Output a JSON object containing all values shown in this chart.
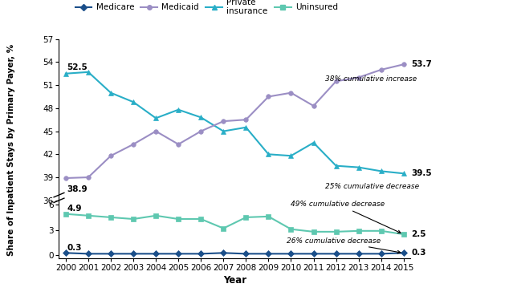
{
  "years": [
    2000,
    2001,
    2002,
    2003,
    2004,
    2005,
    2006,
    2007,
    2008,
    2009,
    2010,
    2011,
    2012,
    2013,
    2014,
    2015
  ],
  "medicare": [
    0.3,
    0.2,
    0.2,
    0.2,
    0.2,
    0.2,
    0.2,
    0.3,
    0.2,
    0.2,
    0.2,
    0.2,
    0.2,
    0.2,
    0.2,
    0.3
  ],
  "medicaid": [
    38.9,
    39.0,
    41.8,
    43.3,
    45.0,
    43.3,
    45.0,
    46.3,
    46.5,
    49.5,
    50.0,
    48.3,
    51.5,
    52.0,
    53.0,
    53.7
  ],
  "private": [
    52.5,
    52.7,
    50.0,
    48.8,
    46.7,
    47.8,
    46.8,
    45.0,
    45.5,
    42.0,
    41.8,
    43.5,
    40.5,
    40.3,
    39.8,
    39.5
  ],
  "uninsured": [
    4.9,
    4.7,
    4.5,
    4.3,
    4.7,
    4.3,
    4.3,
    3.2,
    4.5,
    4.6,
    3.1,
    2.8,
    2.8,
    2.9,
    2.9,
    2.5
  ],
  "medicare_color": "#1b4f8a",
  "medicaid_color": "#9b8ec4",
  "private_color": "#29aec7",
  "uninsured_color": "#5ec8b0",
  "ylabel": "Share of Inpatient Stays by Primary Payer, %",
  "xlabel": "Year",
  "upper_yticks": [
    36,
    39,
    42,
    45,
    48,
    51,
    54,
    57
  ],
  "lower_yticks": [
    0,
    3,
    6
  ]
}
